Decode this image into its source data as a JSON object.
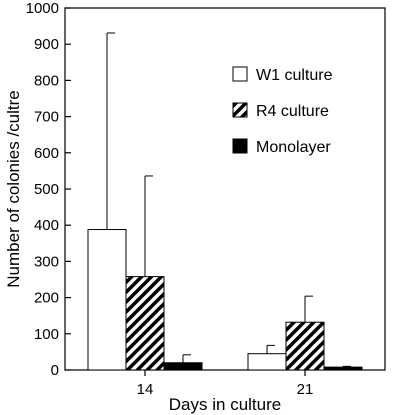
{
  "chart_data": {
    "type": "bar",
    "categories": [
      "14",
      "21"
    ],
    "xlabel": "Days in culture",
    "ylabel": "Number of colonies /cultre",
    "ylim": [
      0,
      1000
    ],
    "yticks": [
      0,
      100,
      200,
      300,
      400,
      500,
      600,
      700,
      800,
      900,
      1000
    ],
    "grid": false,
    "legend": "top-right",
    "error_bars": "upper",
    "series": [
      {
        "name": "W1 culture",
        "fill": "white",
        "values": [
          388,
          45
        ],
        "errors": [
          543,
          23
        ]
      },
      {
        "name": "R4 culture",
        "fill": "hatched",
        "values": [
          258,
          132
        ],
        "errors": [
          278,
          72
        ]
      },
      {
        "name": "Monolayer",
        "fill": "black",
        "values": [
          20,
          8
        ],
        "errors": [
          22,
          2
        ]
      }
    ]
  }
}
